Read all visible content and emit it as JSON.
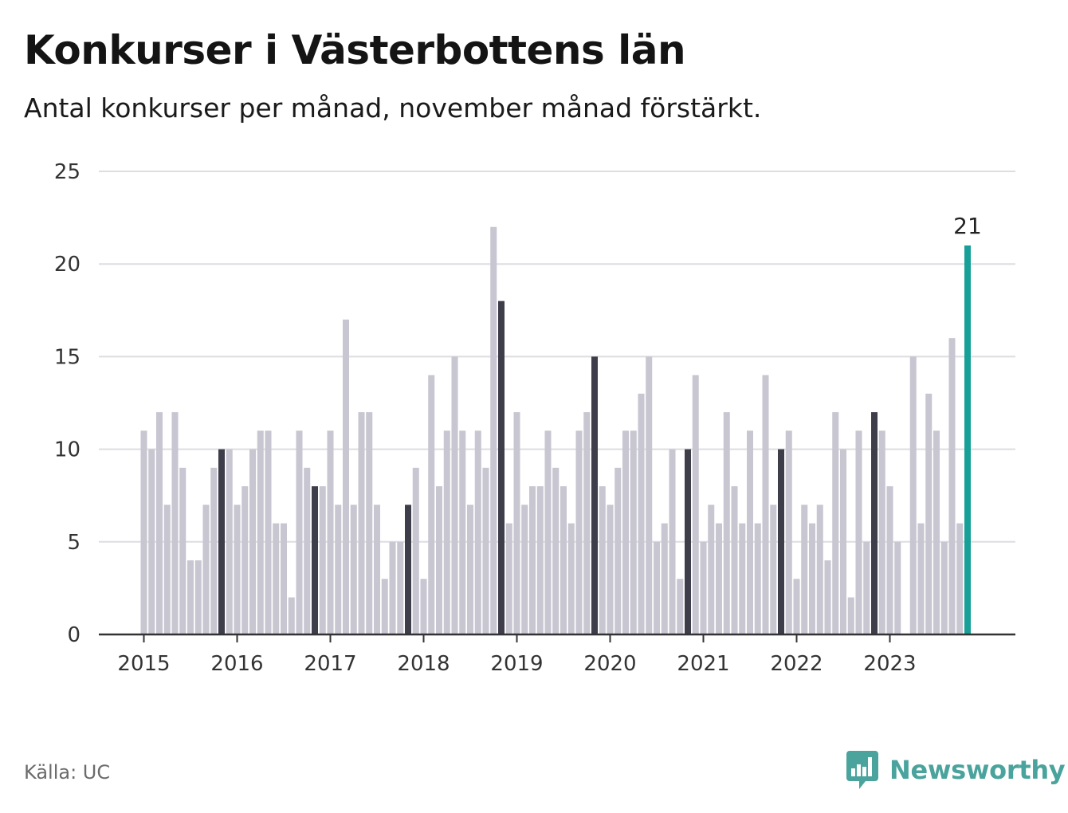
{
  "header": {
    "title": "Konkurser i Västerbottens län",
    "subtitle": "Antal konkurser per månad, november månad förstärkt."
  },
  "footer": {
    "source": "Källa: UC",
    "brand": "Newsworthy"
  },
  "colors": {
    "bar": "#c7c6d1",
    "highlight": "#3e3d4a",
    "latest": "#17a097",
    "grid": "#dddde2",
    "axis": "#333333"
  },
  "chart_data": {
    "type": "bar",
    "x_start": "2015-01",
    "x_tick_labels": [
      "2015",
      "2016",
      "2017",
      "2018",
      "2019",
      "2020",
      "2021",
      "2022",
      "2023"
    ],
    "y_ticks": [
      0,
      5,
      10,
      15,
      20,
      25
    ],
    "ylim": [
      0,
      25
    ],
    "grid": true,
    "highlight_month": "november",
    "values": [
      11,
      10,
      12,
      7,
      12,
      9,
      4,
      4,
      7,
      9,
      10,
      10,
      7,
      8,
      10,
      11,
      11,
      6,
      6,
      2,
      11,
      9,
      8,
      8,
      11,
      7,
      17,
      7,
      12,
      12,
      7,
      3,
      5,
      5,
      7,
      9,
      3,
      14,
      8,
      11,
      15,
      11,
      7,
      11,
      9,
      22,
      18,
      6,
      12,
      7,
      8,
      8,
      11,
      9,
      8,
      6,
      11,
      12,
      15,
      8,
      7,
      9,
      11,
      11,
      13,
      15,
      5,
      6,
      10,
      3,
      10,
      14,
      5,
      7,
      6,
      12,
      8,
      6,
      11,
      6,
      14,
      7,
      10,
      11,
      3,
      7,
      6,
      7,
      4,
      12,
      10,
      2,
      11,
      5,
      12,
      11,
      8,
      5,
      0,
      15,
      6,
      13,
      11,
      5,
      16,
      6,
      21
    ],
    "latest_label": "21"
  }
}
